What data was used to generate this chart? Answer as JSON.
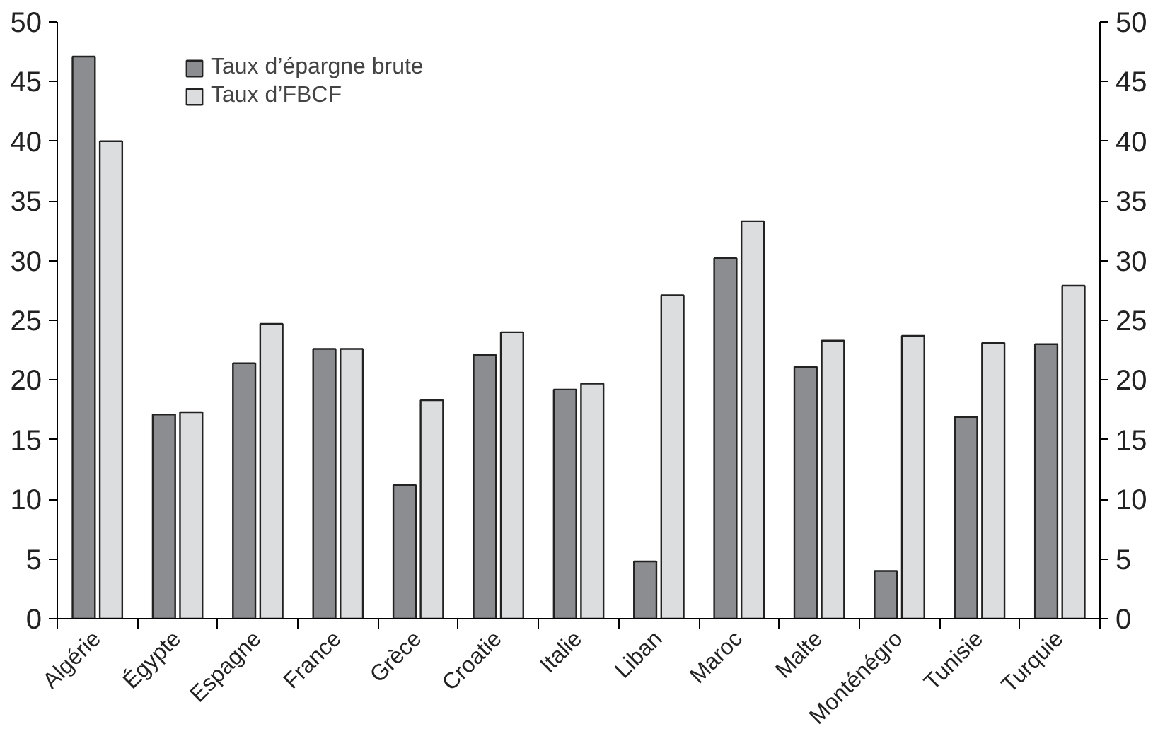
{
  "chart_data": {
    "type": "bar",
    "categories": [
      "Algérie",
      "Égypte",
      "Espagne",
      "France",
      "Grèce",
      "Croatie",
      "Italie",
      "Liban",
      "Maroc",
      "Malte",
      "Monténégro",
      "Tunisie",
      "Turquie"
    ],
    "series": [
      {
        "name": "Taux d’épargne brute",
        "color": "#8c8d91",
        "values": [
          47.1,
          17.1,
          21.4,
          22.6,
          11.2,
          22.1,
          19.2,
          4.8,
          30.2,
          21.1,
          4.0,
          16.9,
          23.0
        ]
      },
      {
        "name": "Taux d’FBCF",
        "color": "#dcdddf",
        "values": [
          40.0,
          17.3,
          24.7,
          22.6,
          18.3,
          24.0,
          19.7,
          27.1,
          33.3,
          23.3,
          23.7,
          23.1,
          27.9
        ]
      }
    ],
    "ylim": [
      0,
      50
    ],
    "yticks": [
      0,
      5,
      10,
      15,
      20,
      25,
      30,
      35,
      40,
      45,
      50
    ],
    "y2lim": [
      0,
      50
    ],
    "y2ticks": [
      0,
      5,
      10,
      15,
      20,
      25,
      30,
      35,
      40,
      45,
      50
    ],
    "grid": false,
    "legend": "top left"
  }
}
